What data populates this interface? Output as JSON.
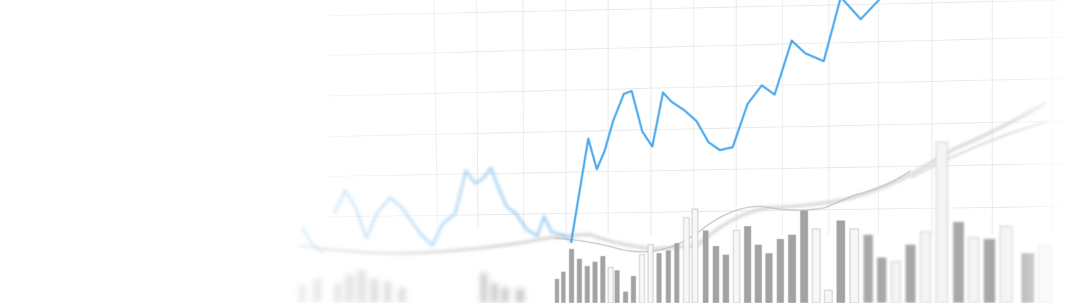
{
  "image": {
    "subject": "blurred-stock-chart-photo",
    "colors": {
      "background": "#ffffff",
      "grid": "#e6e6e6",
      "price_line": "#4aa8ec",
      "bar_dark": "#9a9a9a",
      "bar_light": "#f6f6f6",
      "bar_outline": "#c8c8c8",
      "average_line": "#d6d6d6"
    }
  }
}
